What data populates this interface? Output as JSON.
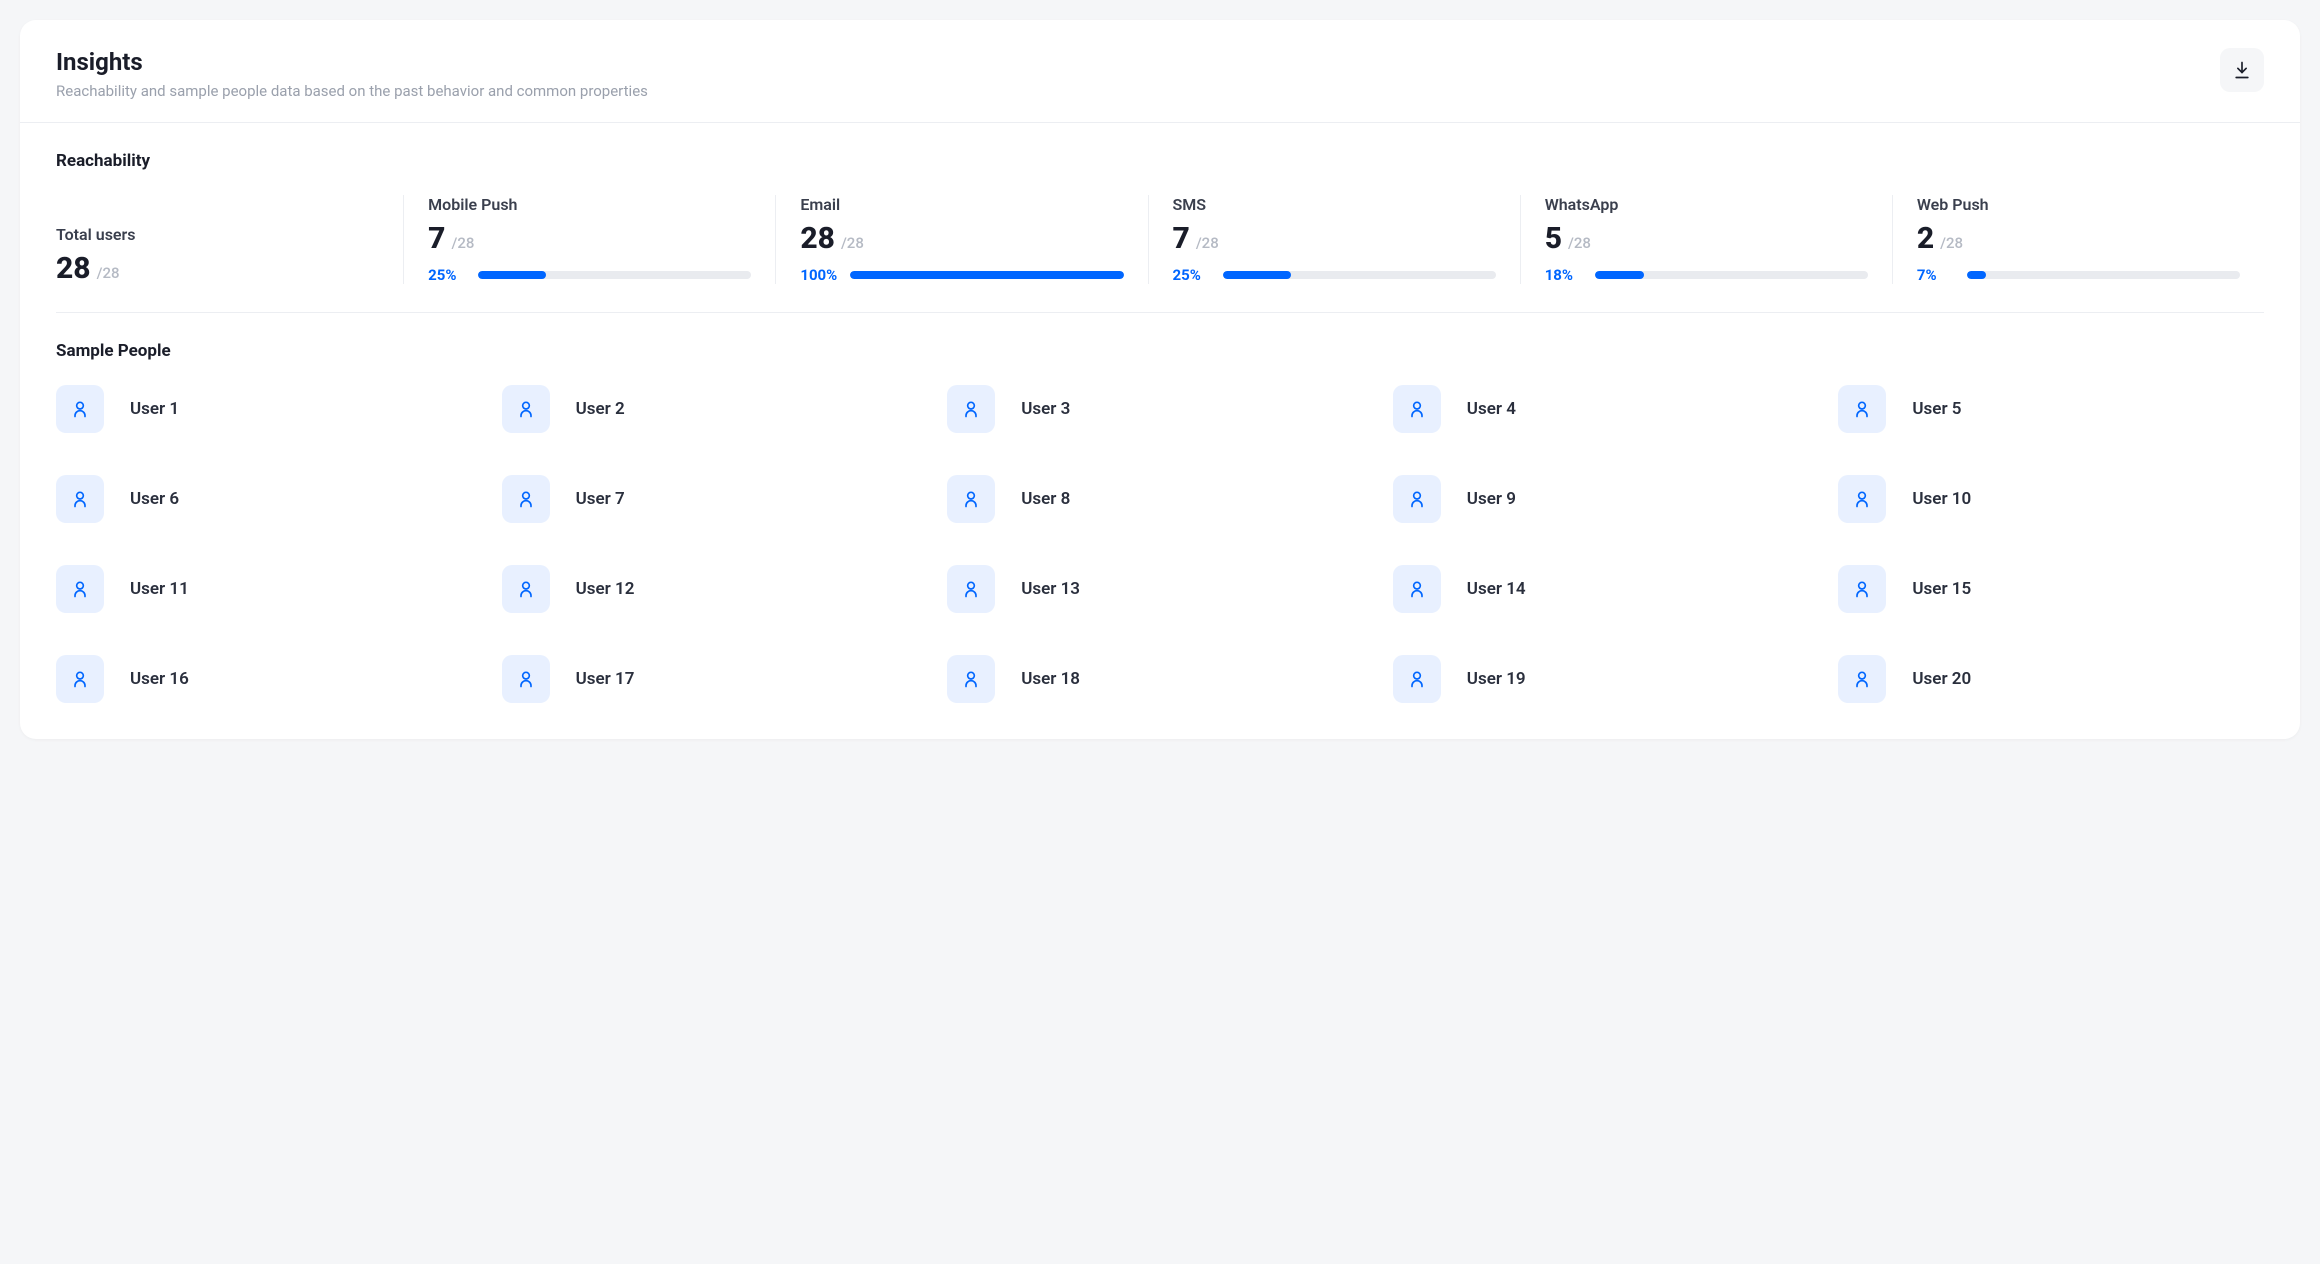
{
  "colors": {
    "accent": "#0066ff",
    "icon_bg": "#e8f0ff",
    "track": "#e9ebef",
    "page_bg": "#f5f6f8",
    "card_bg": "#ffffff",
    "text_primary": "#1a1d29",
    "text_muted": "#9aa0ac",
    "divider": "#eceef2"
  },
  "header": {
    "title": "Insights",
    "subtitle": "Reachability and sample people data based on the past behavior and common properties",
    "download_icon": "download-icon"
  },
  "reachability": {
    "section_title": "Reachability",
    "total": {
      "label": "Total users",
      "value": "28",
      "of": "/28"
    },
    "channels": [
      {
        "label": "Mobile Push",
        "value": "7",
        "of": "/28",
        "pct_label": "25%",
        "pct": 25
      },
      {
        "label": "Email",
        "value": "28",
        "of": "/28",
        "pct_label": "100%",
        "pct": 100
      },
      {
        "label": "SMS",
        "value": "7",
        "of": "/28",
        "pct_label": "25%",
        "pct": 25
      },
      {
        "label": "WhatsApp",
        "value": "5",
        "of": "/28",
        "pct_label": "18%",
        "pct": 18
      },
      {
        "label": "Web Push",
        "value": "2",
        "of": "/28",
        "pct_label": "7%",
        "pct": 7
      }
    ]
  },
  "sample_people": {
    "section_title": "Sample People",
    "users": [
      {
        "name": "User 1"
      },
      {
        "name": "User 2"
      },
      {
        "name": "User 3"
      },
      {
        "name": "User 4"
      },
      {
        "name": "User 5"
      },
      {
        "name": "User 6"
      },
      {
        "name": "User 7"
      },
      {
        "name": "User 8"
      },
      {
        "name": "User 9"
      },
      {
        "name": "User 10"
      },
      {
        "name": "User 11"
      },
      {
        "name": "User 12"
      },
      {
        "name": "User 13"
      },
      {
        "name": "User 14"
      },
      {
        "name": "User 15"
      },
      {
        "name": "User 16"
      },
      {
        "name": "User 17"
      },
      {
        "name": "User 18"
      },
      {
        "name": "User 19"
      },
      {
        "name": "User 20"
      }
    ]
  }
}
